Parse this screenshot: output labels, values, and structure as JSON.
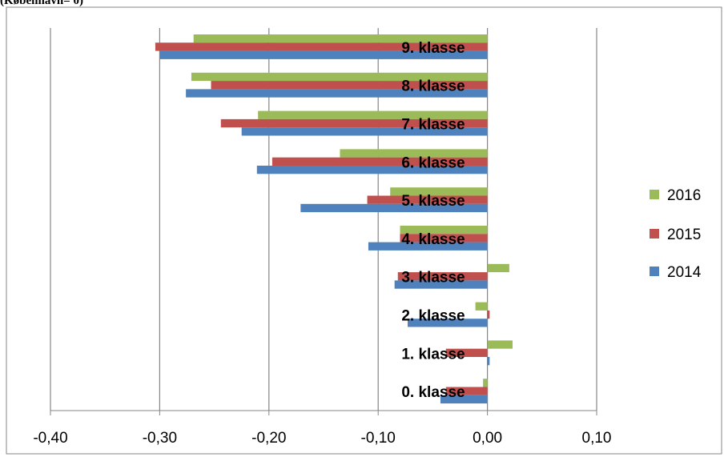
{
  "chart_title": "(København= 0)",
  "chart_data": {
    "type": "bar",
    "orientation": "horizontal",
    "title": "(København= 0)",
    "xlabel": "",
    "ylabel": "",
    "xlim": [
      -0.4,
      0.1
    ],
    "xticks": [
      "-0,40",
      "-0,30",
      "-0,20",
      "-0,10",
      "0,00",
      "0,10"
    ],
    "xtick_values": [
      -0.4,
      -0.3,
      -0.2,
      -0.1,
      0.0,
      0.1
    ],
    "grid": true,
    "legend_position": "right",
    "categories": [
      "0. klasse",
      "1. klasse",
      "2. klasse",
      "3. klasse",
      "4. klasse",
      "5. klasse",
      "6. klasse",
      "7. klasse",
      "8. klasse",
      "9. klasse"
    ],
    "series": [
      {
        "name": "2014",
        "color": "#4F81BD",
        "values": [
          -0.043,
          0.002,
          -0.073,
          -0.085,
          -0.109,
          -0.171,
          -0.211,
          -0.225,
          -0.276,
          -0.3
        ]
      },
      {
        "name": "2015",
        "color": "#C0504D",
        "values": [
          -0.038,
          -0.038,
          0.002,
          -0.082,
          -0.08,
          -0.11,
          -0.197,
          -0.244,
          -0.253,
          -0.304
        ]
      },
      {
        "name": "2016",
        "color": "#9BBB59",
        "values": [
          -0.004,
          0.023,
          -0.011,
          0.02,
          -0.08,
          -0.089,
          -0.135,
          -0.21,
          -0.271,
          -0.269
        ]
      }
    ],
    "legend_order": [
      "2016",
      "2015",
      "2014"
    ]
  }
}
